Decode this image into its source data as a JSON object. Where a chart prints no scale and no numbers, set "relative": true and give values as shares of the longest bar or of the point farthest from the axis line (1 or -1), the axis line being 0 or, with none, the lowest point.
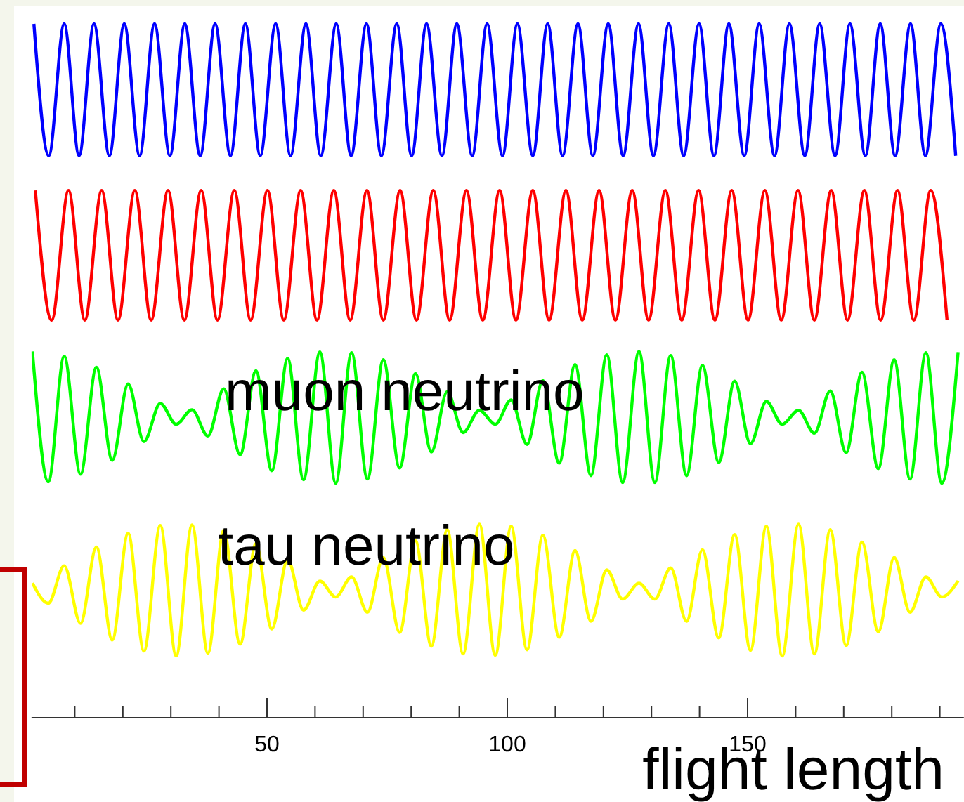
{
  "chart_data": {
    "type": "line",
    "relative": true,
    "xlabel": "flight length",
    "xlim": [
      1,
      195
    ],
    "xticks": [
      {
        "value": 10,
        "label": null
      },
      {
        "value": 20,
        "label": null
      },
      {
        "value": 30,
        "label": null
      },
      {
        "value": 40,
        "label": null
      },
      50,
      {
        "value": 60,
        "label": null
      },
      {
        "value": 70,
        "label": null
      },
      {
        "value": 80,
        "label": null
      },
      {
        "value": 90,
        "label": null
      },
      100,
      {
        "value": 110,
        "label": null
      },
      {
        "value": 120,
        "label": null
      },
      {
        "value": 130,
        "label": null
      },
      {
        "value": 140,
        "label": null
      },
      150,
      {
        "value": 160,
        "label": null
      },
      {
        "value": 170,
        "label": null
      },
      {
        "value": 180,
        "label": null
      },
      {
        "value": 190,
        "label": null
      }
    ],
    "legend": false,
    "grid": false,
    "marker": "none",
    "line_style": "solid",
    "tick_labels": "x",
    "series": [
      {
        "color": "#0000ff",
        "x": [
          1.5,
          4.6,
          7.8,
          10.9,
          14.0,
          17.2,
          20.3,
          23.5,
          26.6,
          29.8,
          32.9,
          36.1,
          39.2,
          42.4,
          45.5,
          48.6,
          51.8,
          54.9,
          58.1,
          61.2,
          64.4,
          67.5,
          70.7,
          73.8,
          77.0,
          80.1,
          83.2,
          86.4,
          89.5,
          92.7,
          95.8,
          99.0,
          102.1,
          105.3,
          108.4,
          111.5,
          114.7,
          117.8,
          121.0,
          124.1,
          127.3,
          130.4,
          133.6,
          136.7,
          139.9,
          143.0,
          146.1,
          149.3,
          152.4,
          155.6,
          158.7,
          161.9,
          165.0,
          168.2,
          171.3,
          174.5,
          177.6,
          180.7,
          183.9,
          187.0,
          190.2,
          193.3
        ],
        "values": [
          1,
          0.81,
          1,
          0.81,
          1,
          0.81,
          1,
          0.81,
          1,
          0.81,
          1,
          0.81,
          1,
          0.81,
          1,
          0.81,
          1,
          0.81,
          1,
          0.81,
          1,
          0.81,
          1,
          0.81,
          1,
          0.81,
          1,
          0.81,
          1,
          0.81,
          1,
          0.81,
          1,
          0.81,
          1,
          0.81,
          1,
          0.81,
          1,
          0.81,
          1,
          0.81,
          1,
          0.81,
          1,
          0.81,
          1,
          0.81,
          1,
          0.81,
          1,
          0.81,
          1,
          0.81,
          1,
          0.81,
          1,
          0.81,
          1,
          0.81,
          1,
          0.81
        ]
      },
      {
        "color": "#ff0000",
        "x": [
          1.8,
          5.2,
          8.7,
          12.1,
          15.6,
          19.0,
          22.5,
          25.9,
          29.4,
          32.8,
          36.3,
          39.7,
          43.2,
          46.6,
          50.1,
          53.5,
          57.0,
          60.4,
          63.9,
          67.3,
          70.8,
          74.2,
          77.7,
          81.1,
          84.6,
          88.0,
          91.5,
          94.9,
          98.4,
          101.8,
          105.3,
          108.7,
          112.2,
          115.6,
          119.1,
          122.5,
          126.0,
          129.4,
          132.9,
          136.3,
          139.8,
          143.2,
          146.7,
          150.1,
          153.6,
          157.0,
          160.5,
          163.9,
          167.4,
          170.8,
          174.3,
          177.7,
          181.2,
          184.6,
          188.1,
          191.5
        ],
        "values": [
          0.76,
          0.573,
          0.76,
          0.573,
          0.76,
          0.573,
          0.76,
          0.573,
          0.76,
          0.573,
          0.76,
          0.573,
          0.76,
          0.573,
          0.76,
          0.573,
          0.76,
          0.573,
          0.76,
          0.573,
          0.76,
          0.573,
          0.76,
          0.573,
          0.76,
          0.573,
          0.76,
          0.573,
          0.76,
          0.573,
          0.76,
          0.573,
          0.76,
          0.573,
          0.76,
          0.573,
          0.76,
          0.573,
          0.76,
          0.573,
          0.76,
          0.573,
          0.76,
          0.573,
          0.76,
          0.573,
          0.76,
          0.573,
          0.76,
          0.573,
          0.76,
          0.573,
          0.76,
          0.573,
          0.76,
          0.573
        ]
      },
      {
        "name": "muon neutrino",
        "color": "#00ff00",
        "x": [
          1.2,
          4.5,
          7.8,
          11.2,
          14.5,
          17.8,
          21.1,
          24.4,
          27.8,
          31.1,
          34.4,
          37.7,
          41.0,
          44.4,
          47.7,
          51.0,
          54.3,
          57.6,
          61.0,
          64.3,
          67.6,
          70.9,
          74.2,
          77.6,
          80.9,
          84.2,
          87.5,
          90.8,
          94.2,
          97.5,
          100.8,
          104.1,
          107.4,
          110.8,
          114.1,
          117.4,
          120.7,
          124.0,
          127.4,
          130.7,
          134.0,
          137.3,
          140.6,
          144.0,
          147.3,
          150.6,
          153.9,
          157.2,
          160.6,
          163.9,
          167.2,
          170.5,
          173.8,
          177.2,
          180.5,
          183.8,
          187.1,
          190.4,
          193.8
        ],
        "values": [
          0.528,
          0.34,
          0.521,
          0.351,
          0.505,
          0.371,
          0.481,
          0.398,
          0.453,
          0.423,
          0.444,
          0.406,
          0.474,
          0.379,
          0.5,
          0.356,
          0.518,
          0.343,
          0.527,
          0.338,
          0.526,
          0.344,
          0.516,
          0.36,
          0.496,
          0.383,
          0.47,
          0.411,
          0.443,
          0.423,
          0.458,
          0.394,
          0.486,
          0.367,
          0.509,
          0.349,
          0.523,
          0.339,
          0.528,
          0.339,
          0.522,
          0.349,
          0.508,
          0.368,
          0.485,
          0.395,
          0.456,
          0.423,
          0.443,
          0.41,
          0.471,
          0.382,
          0.498,
          0.359,
          0.516,
          0.344,
          0.526,
          0.338,
          0.527
        ]
      },
      {
        "name": "tau neutrino",
        "color": "#ffff00",
        "x": [
          1.2,
          4.5,
          7.8,
          11.2,
          14.5,
          17.8,
          21.1,
          24.4,
          27.8,
          31.1,
          34.4,
          37.7,
          41.0,
          44.4,
          47.7,
          51.0,
          54.3,
          57.6,
          61.0,
          64.3,
          67.6,
          70.9,
          74.2,
          77.6,
          80.9,
          84.2,
          87.5,
          90.8,
          94.2,
          97.5,
          100.8,
          104.1,
          107.4,
          110.8,
          114.1,
          117.4,
          120.7,
          124.0,
          127.4,
          130.7,
          134.0,
          137.3,
          140.6,
          144.0,
          147.3,
          150.6,
          153.9,
          157.2,
          160.6,
          163.9,
          167.2,
          170.5,
          173.8,
          177.2,
          180.5,
          183.8,
          187.1,
          190.4,
          193.8
        ],
        "values": [
          0.194,
          0.165,
          0.219,
          0.136,
          0.246,
          0.112,
          0.266,
          0.096,
          0.277,
          0.089,
          0.278,
          0.093,
          0.27,
          0.106,
          0.251,
          0.128,
          0.228,
          0.155,
          0.197,
          0.174,
          0.203,
          0.152,
          0.231,
          0.123,
          0.255,
          0.103,
          0.271,
          0.092,
          0.279,
          0.09,
          0.276,
          0.098,
          0.263,
          0.116,
          0.241,
          0.139,
          0.213,
          0.171,
          0.194,
          0.171,
          0.216,
          0.139,
          0.242,
          0.115,
          0.264,
          0.097,
          0.276,
          0.089,
          0.279,
          0.092,
          0.271,
          0.104,
          0.253,
          0.124,
          0.231,
          0.152,
          0.203,
          0.174,
          0.197
        ]
      }
    ]
  }
}
